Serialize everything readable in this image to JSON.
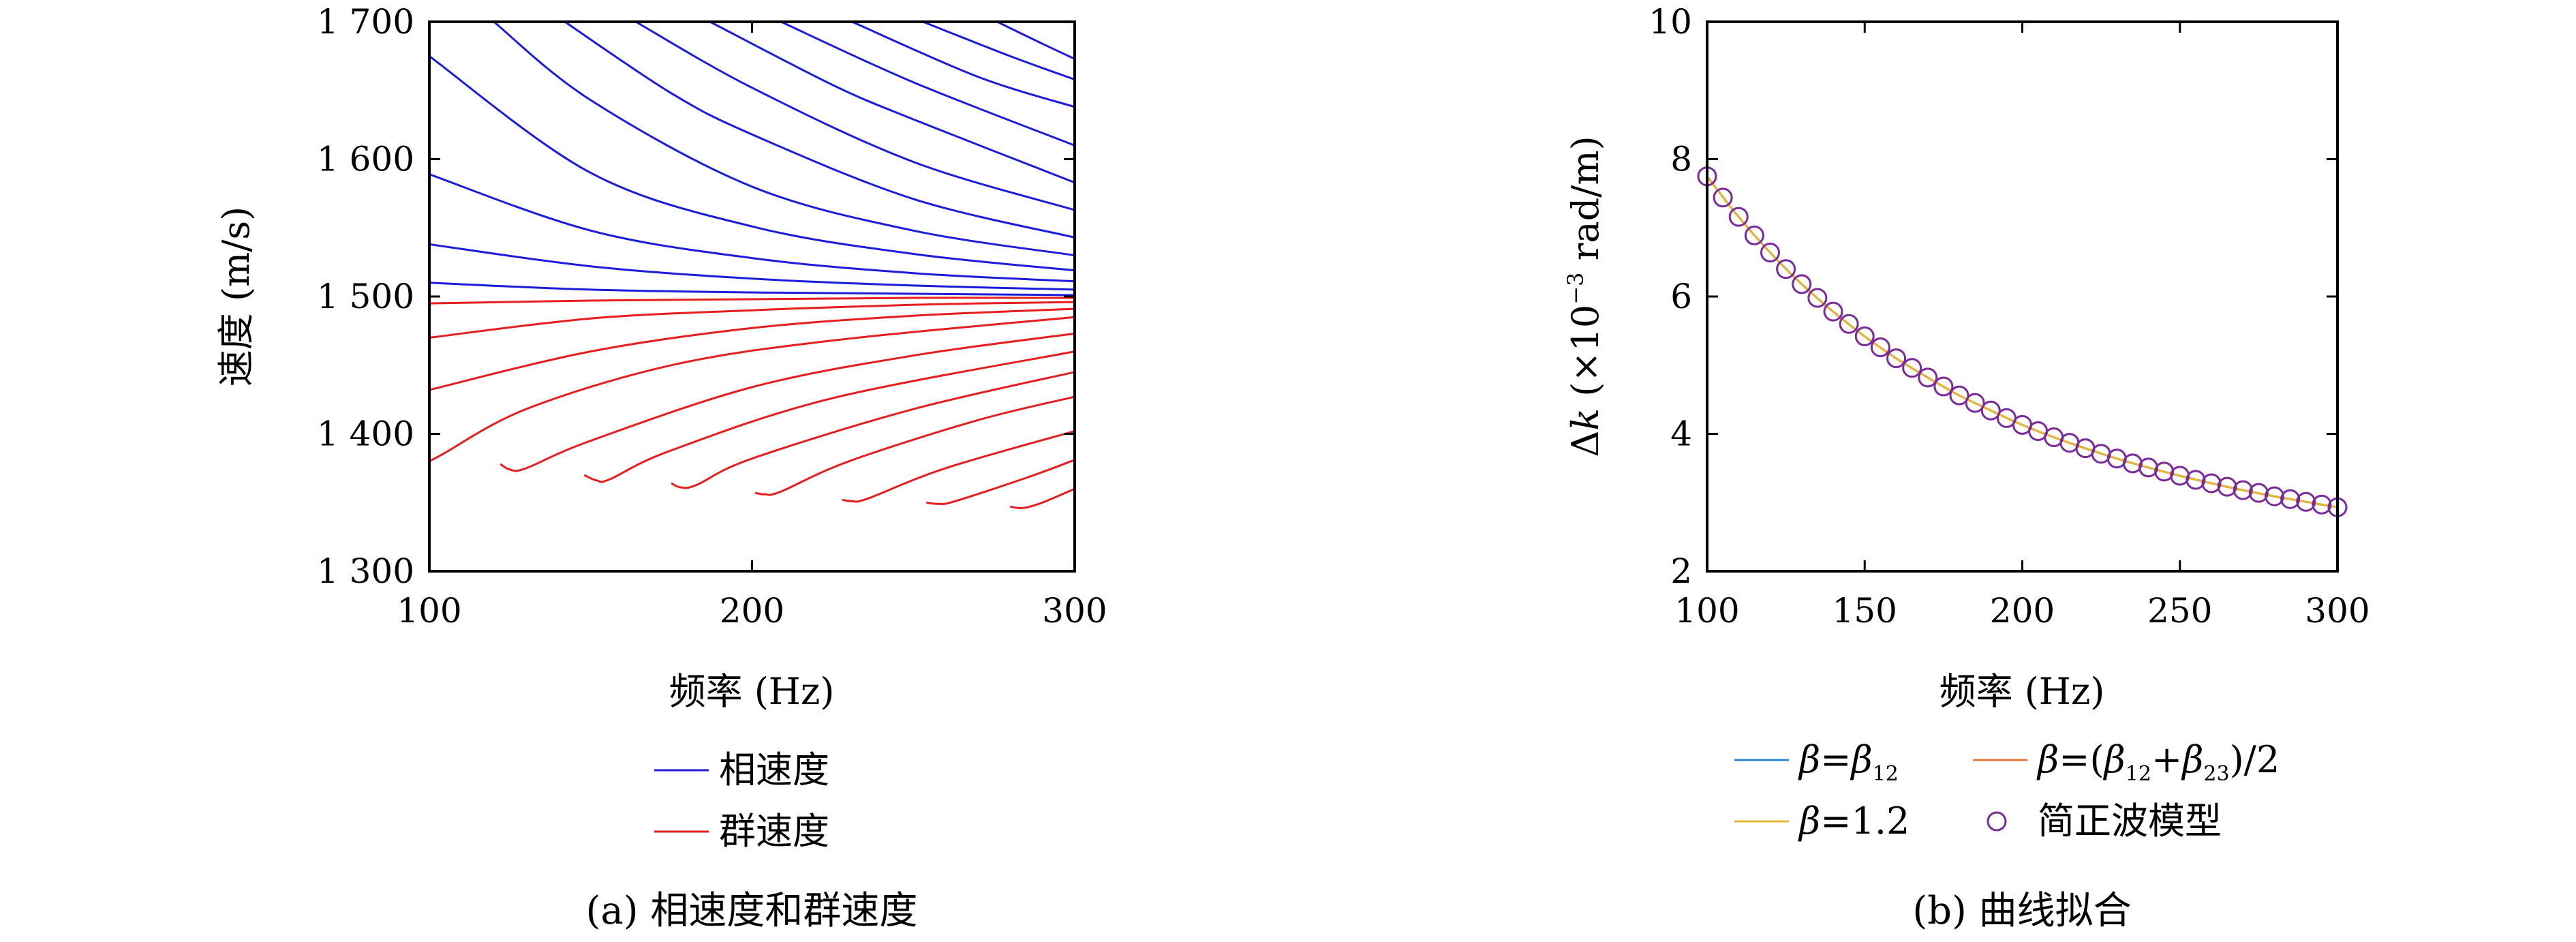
{
  "chart_data": [
    {
      "type": "line",
      "caption": "(a) 相速度和群速度",
      "xlabel": "频率 (Hz)",
      "ylabel": "速度 (m/s)",
      "xlim": [
        100,
        300
      ],
      "ylim": [
        1300,
        1700
      ],
      "xticks": [
        "100",
        "200",
        "300"
      ],
      "yticks": [
        "1 300",
        "1 400",
        "1 500",
        "1 600",
        "1 700"
      ],
      "grid": false,
      "legend_position": "bottom-center",
      "legend": [
        "相速度",
        "群速度"
      ],
      "colors": {
        "phase": "#1c1cdc",
        "group": "#e61e1e"
      },
      "series": [
        {
          "name": "相速度",
          "modes": [
            {
              "x": [
                100,
                150,
                200,
                250,
                300
              ],
              "y": [
                1510,
                1505,
                1503,
                1502,
                1501
              ]
            },
            {
              "x": [
                100,
                150,
                200,
                250,
                300
              ],
              "y": [
                1538,
                1522,
                1513,
                1508,
                1505
              ]
            },
            {
              "x": [
                100,
                150,
                200,
                250,
                300
              ],
              "y": [
                1589,
                1548,
                1528,
                1517,
                1511
              ]
            },
            {
              "x": [
                100,
                150,
                200,
                250,
                300
              ],
              "y": [
                1675,
                1590,
                1551,
                1531,
                1519
              ]
            },
            {
              "x": [
                120,
                150,
                200,
                250,
                300
              ],
              "y": [
                1700,
                1643,
                1580,
                1548,
                1530
              ]
            },
            {
              "x": [
                142,
                175,
                200,
                250,
                300
              ],
              "y": [
                1700,
                1648,
                1618,
                1571,
                1543
              ]
            },
            {
              "x": [
                164,
                200,
                250,
                300
              ],
              "y": [
                1700,
                1652,
                1598,
                1563
              ]
            },
            {
              "x": [
                187,
                225,
                250,
                300
              ],
              "y": [
                1700,
                1654,
                1629,
                1583
              ]
            },
            {
              "x": [
                209,
                250,
                300
              ],
              "y": [
                1700,
                1656,
                1610
              ]
            },
            {
              "x": [
                231,
                270,
                300
              ],
              "y": [
                1700,
                1660,
                1638
              ]
            },
            {
              "x": [
                253,
                280,
                300
              ],
              "y": [
                1700,
                1675,
                1658
              ]
            },
            {
              "x": [
                276,
                290,
                300
              ],
              "y": [
                1700,
                1684,
                1673
              ]
            }
          ]
        },
        {
          "name": "群速度",
          "modes": [
            {
              "x": [
                100,
                150,
                200,
                250,
                300
              ],
              "y": [
                1495,
                1497,
                1498,
                1499,
                1499
              ]
            },
            {
              "x": [
                100,
                150,
                200,
                250,
                300
              ],
              "y": [
                1470,
                1484,
                1490,
                1494,
                1496
              ]
            },
            {
              "x": [
                100,
                150,
                200,
                250,
                300
              ],
              "y": [
                1432,
                1460,
                1477,
                1486,
                1491
              ]
            },
            {
              "x": [
                100,
                104,
                130,
                175,
                225,
                300
              ],
              "y": [
                1380,
                1385,
                1418,
                1450,
                1468,
                1485
              ]
            },
            {
              "x": [
                122,
                125,
                130,
                150,
                200,
                250,
                300
              ],
              "y": [
                1378,
                1374,
                1375,
                1395,
                1434,
                1457,
                1473
              ]
            },
            {
              "x": [
                148,
                152,
                156,
                175,
                225,
                300
              ],
              "y": [
                1370,
                1366,
                1367,
                1388,
                1426,
                1460
              ]
            },
            {
              "x": [
                175,
                178,
                183,
                200,
                250,
                300
              ],
              "y": [
                1364,
                1361,
                1363,
                1382,
                1418,
                1445
              ]
            },
            {
              "x": [
                201,
                204,
                209,
                230,
                270,
                300
              ],
              "y": [
                1357,
                1356,
                1358,
                1380,
                1410,
                1427
              ]
            },
            {
              "x": [
                228,
                231,
                236,
                260,
                300
              ],
              "y": [
                1352,
                1351,
                1353,
                1375,
                1402
              ]
            },
            {
              "x": [
                254,
                258,
                263,
                285,
                300
              ],
              "y": [
                1350,
                1349,
                1351,
                1368,
                1381
              ]
            },
            {
              "x": [
                280,
                284,
                290,
                300
              ],
              "y": [
                1347,
                1346,
                1350,
                1360
              ]
            }
          ]
        }
      ]
    },
    {
      "type": "line",
      "caption": "(b) 曲线拟合",
      "xlabel": "频率 (Hz)",
      "ylabel_parts": {
        "delta": "Δ",
        "var": "k",
        "main": " (×10",
        "exp": "−3",
        "unit": " rad/m)"
      },
      "xlim": [
        100,
        300
      ],
      "ylim": [
        2,
        10
      ],
      "xticks": [
        "100",
        "150",
        "200",
        "250",
        "300"
      ],
      "yticks": [
        "2",
        "4",
        "6",
        "8",
        "10"
      ],
      "grid": false,
      "legend_position": "bottom-center",
      "legend": {
        "item1": {
          "sym": "β",
          "eq": "=",
          "sym2": "β",
          "sub": "12"
        },
        "item2": {
          "sym": "β",
          "eq": "=(",
          "sym2": "β",
          "sub2": "12",
          "plus": "+",
          "sym3": "β",
          "sub3": "23",
          "tail": ")/2"
        },
        "item3": {
          "sym": "β",
          "eq": "=1.2"
        },
        "item4": "简正波模型"
      },
      "colors": {
        "beta12": "#2e86d6",
        "beta_avg": "#e8753a",
        "beta12_fixed": "#e3b634",
        "normal_mode": "#7a2a9a"
      },
      "x": [
        100,
        110,
        120,
        130,
        140,
        150,
        160,
        170,
        180,
        190,
        200,
        210,
        220,
        230,
        240,
        250,
        260,
        270,
        280,
        290,
        300
      ],
      "series": [
        {
          "name": "β=β12",
          "values": [
            7.75,
            7.16,
            6.64,
            6.18,
            5.78,
            5.42,
            5.1,
            4.82,
            4.56,
            4.34,
            4.13,
            3.95,
            3.79,
            3.64,
            3.51,
            3.39,
            3.28,
            3.18,
            3.09,
            3.01,
            2.93
          ]
        },
        {
          "name": "β=(β12+β23)/2",
          "values": [
            7.75,
            7.16,
            6.64,
            6.18,
            5.78,
            5.42,
            5.1,
            4.82,
            4.56,
            4.34,
            4.13,
            3.95,
            3.79,
            3.64,
            3.51,
            3.39,
            3.28,
            3.18,
            3.09,
            3.01,
            2.93
          ]
        },
        {
          "name": "β=1.2",
          "values": [
            7.75,
            7.16,
            6.64,
            6.18,
            5.78,
            5.42,
            5.1,
            4.82,
            4.56,
            4.34,
            4.13,
            3.95,
            3.79,
            3.64,
            3.51,
            3.39,
            3.28,
            3.18,
            3.09,
            3.01,
            2.93
          ]
        }
      ],
      "markers": {
        "name": "简正波模型",
        "x": [
          100,
          105,
          110,
          115,
          120,
          125,
          130,
          135,
          140,
          145,
          150,
          155,
          160,
          165,
          170,
          175,
          180,
          185,
          190,
          195,
          200,
          205,
          210,
          215,
          220,
          225,
          230,
          235,
          240,
          245,
          250,
          255,
          260,
          265,
          270,
          275,
          280,
          285,
          290,
          295,
          300
        ],
        "y": [
          7.75,
          7.44,
          7.16,
          6.89,
          6.64,
          6.4,
          6.18,
          5.98,
          5.78,
          5.6,
          5.42,
          5.26,
          5.1,
          4.96,
          4.82,
          4.69,
          4.56,
          4.45,
          4.34,
          4.23,
          4.13,
          4.04,
          3.95,
          3.87,
          3.79,
          3.71,
          3.64,
          3.57,
          3.51,
          3.45,
          3.39,
          3.33,
          3.28,
          3.23,
          3.18,
          3.14,
          3.09,
          3.05,
          3.01,
          2.97,
          2.93
        ]
      }
    }
  ]
}
